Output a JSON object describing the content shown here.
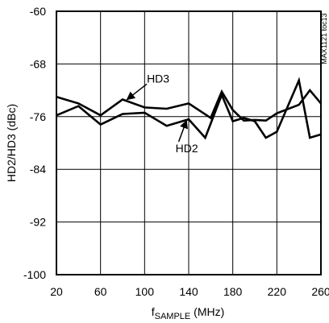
{
  "chart_data": {
    "type": "line",
    "xlabel_main": "f",
    "xlabel_sub": "SAMPLE",
    "xlabel_unit": " (MHz)",
    "ylabel": "HD2/HD3 (dBc)",
    "xlim": [
      20,
      260
    ],
    "ylim": [
      -100,
      -60
    ],
    "x_ticks": [
      20,
      60,
      100,
      140,
      180,
      220,
      260
    ],
    "y_ticks": [
      -60,
      -68,
      -76,
      -84,
      -92,
      -100
    ],
    "x_tick_labels": [
      "20",
      "60",
      "100",
      "140",
      "180",
      "220",
      "260"
    ],
    "y_tick_labels": [
      "-60",
      "-68",
      "-76",
      "-84",
      "-92",
      "-100"
    ],
    "grid": true,
    "legend": "none",
    "watermark": "MAX1121 toc13",
    "series": [
      {
        "name": "HD3",
        "x": [
          20,
          40,
          60,
          80,
          100,
          120,
          140,
          160,
          170,
          180,
          190,
          200,
          210,
          220,
          240,
          250,
          260
        ],
        "y": [
          -73.0,
          -74.0,
          -75.8,
          -73.4,
          -74.6,
          -74.8,
          -74.0,
          -76.2,
          -72.2,
          -75.0,
          -76.6,
          -76.5,
          -76.6,
          -75.5,
          -74.2,
          -72.0,
          -74.0
        ]
      },
      {
        "name": "HD2",
        "x": [
          20,
          40,
          60,
          80,
          100,
          120,
          140,
          155,
          170,
          180,
          190,
          200,
          210,
          220,
          240,
          250,
          260
        ],
        "y": [
          -75.8,
          -74.4,
          -77.2,
          -75.6,
          -75.4,
          -77.4,
          -76.4,
          -79.2,
          -72.7,
          -76.7,
          -76.2,
          -76.7,
          -79.2,
          -78.3,
          -70.5,
          -79.2,
          -78.7
        ]
      }
    ],
    "annotations": [
      {
        "text": "HD3",
        "x": 102,
        "y": -70.8,
        "target_x": 84,
        "target_y": -73.4
      },
      {
        "text": "HD2",
        "x": 128,
        "y": -81.4,
        "target_x": 138,
        "target_y": -76.6
      }
    ]
  }
}
